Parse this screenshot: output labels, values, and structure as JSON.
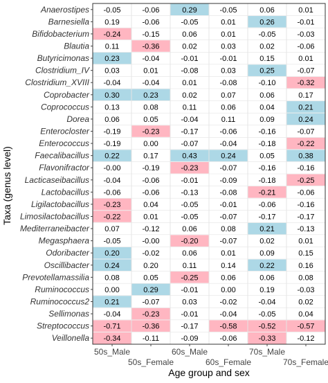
{
  "chart_data": {
    "type": "heatmap",
    "xlabel": "Age group and sex",
    "ylabel": "Taxa (genus level)",
    "columns": [
      "50s_Male",
      "50s_Female",
      "60s_Male",
      "60s_Female",
      "70s_Male",
      "70s_Female"
    ],
    "grid": true,
    "colors": {
      "positive": "#add8e6",
      "negative": "#ffb6c1",
      "background": "#ffffff",
      "gridline": "#e4e4e4",
      "border": "#333333"
    },
    "highlight_rule": "cells with significant association are filled: blue = positive, pink = negative",
    "rows": [
      {
        "taxon": "Anaerostipes",
        "values": [
          "-0.05",
          "-0.06",
          "0.29",
          "-0.05",
          "0.06",
          "0.01"
        ],
        "highlight": [
          0,
          0,
          1,
          0,
          0,
          0
        ]
      },
      {
        "taxon": "Barnesiella",
        "values": [
          "0.19",
          "-0.06",
          "-0.05",
          "0.01",
          "0.26",
          "-0.01"
        ],
        "highlight": [
          0,
          0,
          0,
          0,
          1,
          0
        ]
      },
      {
        "taxon": "Bifidobacterium",
        "values": [
          "-0.24",
          "-0.15",
          "0.06",
          "0.01",
          "-0.05",
          "-0.03"
        ],
        "highlight": [
          -1,
          0,
          0,
          0,
          0,
          0
        ]
      },
      {
        "taxon": "Blautia",
        "values": [
          "0.11",
          "-0.36",
          "0.02",
          "0.03",
          "0.02",
          "-0.06"
        ],
        "highlight": [
          0,
          -1,
          0,
          0,
          0,
          0
        ]
      },
      {
        "taxon": "Butyricimonas",
        "values": [
          "0.23",
          "-0.04",
          "-0.01",
          "-0.01",
          "0.15",
          "0.01"
        ],
        "highlight": [
          1,
          0,
          0,
          0,
          0,
          0
        ]
      },
      {
        "taxon": "Clostridium_IV",
        "values": [
          "0.03",
          "0.01",
          "-0.08",
          "0.03",
          "0.25",
          "-0.07"
        ],
        "highlight": [
          0,
          0,
          0,
          0,
          1,
          0
        ]
      },
      {
        "taxon": "Clostridium_XVIII",
        "values": [
          "-0.04",
          "-0.04",
          "0.01",
          "-0.08",
          "-0.10",
          "-0.32"
        ],
        "highlight": [
          0,
          0,
          0,
          0,
          0,
          -1
        ]
      },
      {
        "taxon": "Coprobacter",
        "values": [
          "0.30",
          "0.23",
          "0.02",
          "0.07",
          "0.06",
          "0.17"
        ],
        "highlight": [
          1,
          1,
          0,
          0,
          0,
          0
        ]
      },
      {
        "taxon": "Coprococcus",
        "values": [
          "0.13",
          "0.08",
          "0.11",
          "0.06",
          "0.04",
          "0.21"
        ],
        "highlight": [
          0,
          0,
          0,
          0,
          0,
          1
        ]
      },
      {
        "taxon": "Dorea",
        "values": [
          "0.06",
          "0.05",
          "-0.04",
          "0.11",
          "0.09",
          "0.24"
        ],
        "highlight": [
          0,
          0,
          0,
          0,
          0,
          1
        ]
      },
      {
        "taxon": "Enterocloster",
        "values": [
          "-0.19",
          "-0.23",
          "-0.17",
          "-0.06",
          "-0.16",
          "-0.07"
        ],
        "highlight": [
          0,
          -1,
          0,
          0,
          0,
          0
        ]
      },
      {
        "taxon": "Enterococcus",
        "values": [
          "-0.19",
          "0.00",
          "-0.07",
          "-0.04",
          "-0.18",
          "-0.22"
        ],
        "highlight": [
          0,
          0,
          0,
          0,
          0,
          -1
        ]
      },
      {
        "taxon": "Faecalibacillus",
        "values": [
          "0.22",
          "0.17",
          "0.43",
          "0.24",
          "0.05",
          "0.38"
        ],
        "highlight": [
          1,
          0,
          1,
          1,
          0,
          1
        ]
      },
      {
        "taxon": "Flavonifractor",
        "values": [
          "-0.00",
          "-0.19",
          "-0.23",
          "-0.07",
          "-0.16",
          "-0.16"
        ],
        "highlight": [
          0,
          0,
          -1,
          0,
          0,
          0
        ]
      },
      {
        "taxon": "Lacticaseibacillus",
        "values": [
          "-0.04",
          "-0.06",
          "-0.01",
          "-0.09",
          "-0.18",
          "-0.25"
        ],
        "highlight": [
          0,
          0,
          0,
          0,
          0,
          -1
        ]
      },
      {
        "taxon": "Lactobacillus",
        "values": [
          "-0.06",
          "-0.06",
          "-0.13",
          "-0.08",
          "-0.21",
          "-0.06"
        ],
        "highlight": [
          0,
          0,
          0,
          0,
          -1,
          0
        ]
      },
      {
        "taxon": "Ligilactobacillus",
        "values": [
          "-0.23",
          "0.04",
          "-0.05",
          "-0.01",
          "-0.06",
          "-0.16"
        ],
        "highlight": [
          -1,
          0,
          0,
          0,
          0,
          0
        ]
      },
      {
        "taxon": "Limosilactobacillus",
        "values": [
          "-0.22",
          "0.01",
          "-0.05",
          "-0.07",
          "-0.17",
          "-0.17"
        ],
        "highlight": [
          -1,
          0,
          0,
          0,
          0,
          0
        ]
      },
      {
        "taxon": "Mediterraneibacter",
        "values": [
          "0.07",
          "-0.12",
          "0.06",
          "0.08",
          "0.21",
          "-0.13"
        ],
        "highlight": [
          0,
          0,
          0,
          0,
          1,
          0
        ]
      },
      {
        "taxon": "Megasphaera",
        "values": [
          "-0.05",
          "-0.00",
          "-0.20",
          "-0.07",
          "0.02",
          "0.01"
        ],
        "highlight": [
          0,
          0,
          -1,
          0,
          0,
          0
        ]
      },
      {
        "taxon": "Odoribacter",
        "values": [
          "0.20",
          "-0.02",
          "0.06",
          "0.01",
          "0.09",
          "0.15"
        ],
        "highlight": [
          1,
          0,
          0,
          0,
          0,
          0
        ]
      },
      {
        "taxon": "Oscillibacter",
        "values": [
          "0.24",
          "0.20",
          "0.11",
          "0.14",
          "0.22",
          "0.16"
        ],
        "highlight": [
          1,
          0,
          0,
          0,
          1,
          0
        ]
      },
      {
        "taxon": "Prevotellamassilia",
        "values": [
          "0.08",
          "0.05",
          "-0.25",
          "0.06",
          "0.06",
          "0.08"
        ],
        "highlight": [
          0,
          0,
          -1,
          0,
          0,
          0
        ]
      },
      {
        "taxon": "Ruminococcus",
        "values": [
          "0.00",
          "0.29",
          "-0.01",
          "0.00",
          "0.19",
          "-0.03"
        ],
        "highlight": [
          0,
          1,
          0,
          0,
          0,
          0
        ]
      },
      {
        "taxon": "Ruminococcus2",
        "values": [
          "0.21",
          "-0.07",
          "0.03",
          "-0.02",
          "-0.04",
          "0.02"
        ],
        "highlight": [
          1,
          0,
          0,
          0,
          0,
          0
        ]
      },
      {
        "taxon": "Sellimonas",
        "values": [
          "-0.04",
          "-0.23",
          "-0.01",
          "-0.04",
          "-0.05",
          "0.04"
        ],
        "highlight": [
          0,
          -1,
          0,
          0,
          0,
          0
        ]
      },
      {
        "taxon": "Streptococcus",
        "values": [
          "-0.71",
          "-0.36",
          "-0.17",
          "-0.58",
          "-0.52",
          "-0.57"
        ],
        "highlight": [
          -1,
          -1,
          0,
          -1,
          -1,
          -1
        ]
      },
      {
        "taxon": "Veillonella",
        "values": [
          "-0.34",
          "-0.11",
          "-0.09",
          "-0.06",
          "-0.33",
          "-0.12"
        ],
        "highlight": [
          -1,
          0,
          0,
          0,
          -1,
          0
        ]
      }
    ]
  }
}
